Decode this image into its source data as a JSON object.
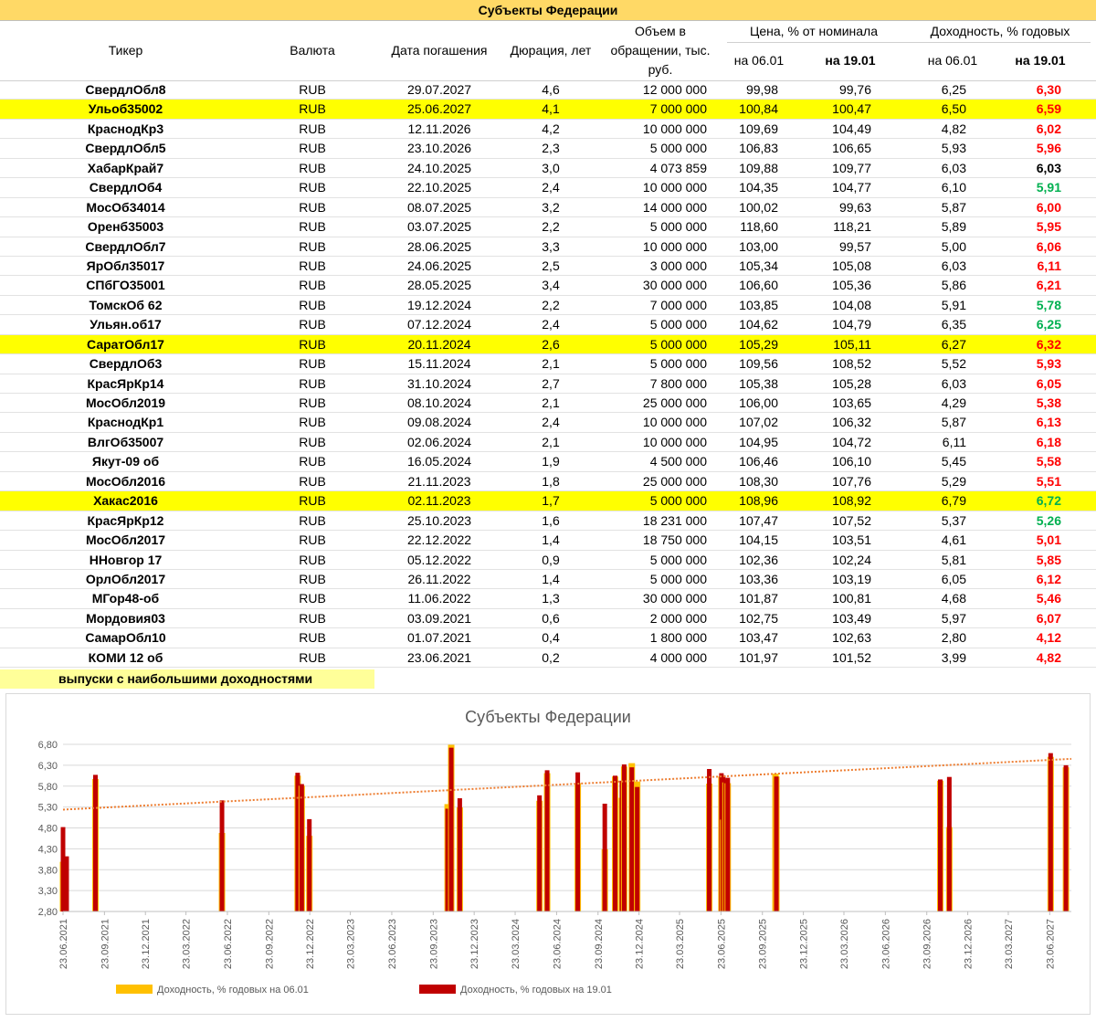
{
  "table": {
    "title": "Субъекты Федерации",
    "headers": {
      "ticker": "Тикер",
      "currency": "Валюта",
      "maturity": "Дата погашения",
      "duration": "Дюрация, лет",
      "volume_l1": "Объем в",
      "volume_l2": "обращении, тыс.",
      "volume_l3": "руб.",
      "price": "Цена, % от номинала",
      "yield": "Доходность, % годовых",
      "date1": "на 06.01",
      "date2": "на 19.01"
    },
    "rows": [
      {
        "ticker": "СвердлОбл8",
        "currency": "RUB",
        "maturity": "29.07.2027",
        "duration": "4,6",
        "volume": "12 000 000",
        "price_0601": "99,98",
        "price_1901": "99,76",
        "yield_0601": "6,25",
        "yield_1901": "6,30",
        "yield_color": "red",
        "highlight": false
      },
      {
        "ticker": "Ульоб35002",
        "currency": "RUB",
        "maturity": "25.06.2027",
        "duration": "4,1",
        "volume": "7 000 000",
        "price_0601": "100,84",
        "price_1901": "100,47",
        "yield_0601": "6,50",
        "yield_1901": "6,59",
        "yield_color": "red",
        "highlight": true
      },
      {
        "ticker": "КраснодКр3",
        "currency": "RUB",
        "maturity": "12.11.2026",
        "duration": "4,2",
        "volume": "10 000 000",
        "price_0601": "109,69",
        "price_1901": "104,49",
        "yield_0601": "4,82",
        "yield_1901": "6,02",
        "yield_color": "red",
        "highlight": false
      },
      {
        "ticker": "СвердлОбл5",
        "currency": "RUB",
        "maturity": "23.10.2026",
        "duration": "2,3",
        "volume": "5 000 000",
        "price_0601": "106,83",
        "price_1901": "106,65",
        "yield_0601": "5,93",
        "yield_1901": "5,96",
        "yield_color": "red",
        "highlight": false
      },
      {
        "ticker": "ХабарКрай7",
        "currency": "RUB",
        "maturity": "24.10.2025",
        "duration": "3,0",
        "volume": "4 073 859",
        "price_0601": "109,88",
        "price_1901": "109,77",
        "yield_0601": "6,03",
        "yield_1901": "6,03",
        "yield_color": "black",
        "highlight": false
      },
      {
        "ticker": "СвердлОб4",
        "currency": "RUB",
        "maturity": "22.10.2025",
        "duration": "2,4",
        "volume": "10 000 000",
        "price_0601": "104,35",
        "price_1901": "104,77",
        "yield_0601": "6,10",
        "yield_1901": "5,91",
        "yield_color": "green",
        "highlight": false
      },
      {
        "ticker": "МосОб34014",
        "currency": "RUB",
        "maturity": "08.07.2025",
        "duration": "3,2",
        "volume": "14 000 000",
        "price_0601": "100,02",
        "price_1901": "99,63",
        "yield_0601": "5,87",
        "yield_1901": "6,00",
        "yield_color": "red",
        "highlight": false
      },
      {
        "ticker": "Оренб35003",
        "currency": "RUB",
        "maturity": "03.07.2025",
        "duration": "2,2",
        "volume": "5 000 000",
        "price_0601": "118,60",
        "price_1901": "118,21",
        "yield_0601": "5,89",
        "yield_1901": "5,95",
        "yield_color": "red",
        "highlight": false
      },
      {
        "ticker": "СвердлОбл7",
        "currency": "RUB",
        "maturity": "28.06.2025",
        "duration": "3,3",
        "volume": "10 000 000",
        "price_0601": "103,00",
        "price_1901": "99,57",
        "yield_0601": "5,00",
        "yield_1901": "6,06",
        "yield_color": "red",
        "highlight": false
      },
      {
        "ticker": "ЯрОбл35017",
        "currency": "RUB",
        "maturity": "24.06.2025",
        "duration": "2,5",
        "volume": "3 000 000",
        "price_0601": "105,34",
        "price_1901": "105,08",
        "yield_0601": "6,03",
        "yield_1901": "6,11",
        "yield_color": "red",
        "highlight": false
      },
      {
        "ticker": "СПбГО35001",
        "currency": "RUB",
        "maturity": "28.05.2025",
        "duration": "3,4",
        "volume": "30 000 000",
        "price_0601": "106,60",
        "price_1901": "105,36",
        "yield_0601": "5,86",
        "yield_1901": "6,21",
        "yield_color": "red",
        "highlight": false
      },
      {
        "ticker": "ТомскОб 62",
        "currency": "RUB",
        "maturity": "19.12.2024",
        "duration": "2,2",
        "volume": "7 000 000",
        "price_0601": "103,85",
        "price_1901": "104,08",
        "yield_0601": "5,91",
        "yield_1901": "5,78",
        "yield_color": "green",
        "highlight": false
      },
      {
        "ticker": "Ульян.об17",
        "currency": "RUB",
        "maturity": "07.12.2024",
        "duration": "2,4",
        "volume": "5 000 000",
        "price_0601": "104,62",
        "price_1901": "104,79",
        "yield_0601": "6,35",
        "yield_1901": "6,25",
        "yield_color": "green",
        "highlight": false
      },
      {
        "ticker": "СаратОбл17",
        "currency": "RUB",
        "maturity": "20.11.2024",
        "duration": "2,6",
        "volume": "5 000 000",
        "price_0601": "105,29",
        "price_1901": "105,11",
        "yield_0601": "6,27",
        "yield_1901": "6,32",
        "yield_color": "red",
        "highlight": true
      },
      {
        "ticker": "СвердлОб3",
        "currency": "RUB",
        "maturity": "15.11.2024",
        "duration": "2,1",
        "volume": "5 000 000",
        "price_0601": "109,56",
        "price_1901": "108,52",
        "yield_0601": "5,52",
        "yield_1901": "5,93",
        "yield_color": "red",
        "highlight": false
      },
      {
        "ticker": "КрасЯрКр14",
        "currency": "RUB",
        "maturity": "31.10.2024",
        "duration": "2,7",
        "volume": "7 800 000",
        "price_0601": "105,38",
        "price_1901": "105,28",
        "yield_0601": "6,03",
        "yield_1901": "6,05",
        "yield_color": "red",
        "highlight": false
      },
      {
        "ticker": "МосОбл2019",
        "currency": "RUB",
        "maturity": "08.10.2024",
        "duration": "2,1",
        "volume": "25 000 000",
        "price_0601": "106,00",
        "price_1901": "103,65",
        "yield_0601": "4,29",
        "yield_1901": "5,38",
        "yield_color": "red",
        "highlight": false
      },
      {
        "ticker": "КраснодКр1",
        "currency": "RUB",
        "maturity": "09.08.2024",
        "duration": "2,4",
        "volume": "10 000 000",
        "price_0601": "107,02",
        "price_1901": "106,32",
        "yield_0601": "5,87",
        "yield_1901": "6,13",
        "yield_color": "red",
        "highlight": false
      },
      {
        "ticker": "ВлгОб35007",
        "currency": "RUB",
        "maturity": "02.06.2024",
        "duration": "2,1",
        "volume": "10 000 000",
        "price_0601": "104,95",
        "price_1901": "104,72",
        "yield_0601": "6,11",
        "yield_1901": "6,18",
        "yield_color": "red",
        "highlight": false
      },
      {
        "ticker": "Якут-09 об",
        "currency": "RUB",
        "maturity": "16.05.2024",
        "duration": "1,9",
        "volume": "4 500 000",
        "price_0601": "106,46",
        "price_1901": "106,10",
        "yield_0601": "5,45",
        "yield_1901": "5,58",
        "yield_color": "red",
        "highlight": false
      },
      {
        "ticker": "МосОбл2016",
        "currency": "RUB",
        "maturity": "21.11.2023",
        "duration": "1,8",
        "volume": "25 000 000",
        "price_0601": "108,30",
        "price_1901": "107,76",
        "yield_0601": "5,29",
        "yield_1901": "5,51",
        "yield_color": "red",
        "highlight": false
      },
      {
        "ticker": "Хакас2016",
        "currency": "RUB",
        "maturity": "02.11.2023",
        "duration": "1,7",
        "volume": "5 000 000",
        "price_0601": "108,96",
        "price_1901": "108,92",
        "yield_0601": "6,79",
        "yield_1901": "6,72",
        "yield_color": "green",
        "highlight": true
      },
      {
        "ticker": "КрасЯрКр12",
        "currency": "RUB",
        "maturity": "25.10.2023",
        "duration": "1,6",
        "volume": "18 231 000",
        "price_0601": "107,47",
        "price_1901": "107,52",
        "yield_0601": "5,37",
        "yield_1901": "5,26",
        "yield_color": "green",
        "highlight": false
      },
      {
        "ticker": "МосОбл2017",
        "currency": "RUB",
        "maturity": "22.12.2022",
        "duration": "1,4",
        "volume": "18 750 000",
        "price_0601": "104,15",
        "price_1901": "103,51",
        "yield_0601": "4,61",
        "yield_1901": "5,01",
        "yield_color": "red",
        "highlight": false
      },
      {
        "ticker": "ННовгор 17",
        "currency": "RUB",
        "maturity": "05.12.2022",
        "duration": "0,9",
        "volume": "5 000 000",
        "price_0601": "102,36",
        "price_1901": "102,24",
        "yield_0601": "5,81",
        "yield_1901": "5,85",
        "yield_color": "red",
        "highlight": false
      },
      {
        "ticker": "ОрлОбл2017",
        "currency": "RUB",
        "maturity": "26.11.2022",
        "duration": "1,4",
        "volume": "5 000 000",
        "price_0601": "103,36",
        "price_1901": "103,19",
        "yield_0601": "6,05",
        "yield_1901": "6,12",
        "yield_color": "red",
        "highlight": false
      },
      {
        "ticker": "МГор48-об",
        "currency": "RUB",
        "maturity": "11.06.2022",
        "duration": "1,3",
        "volume": "30 000 000",
        "price_0601": "101,87",
        "price_1901": "100,81",
        "yield_0601": "4,68",
        "yield_1901": "5,46",
        "yield_color": "red",
        "highlight": false
      },
      {
        "ticker": "Мордовия03",
        "currency": "RUB",
        "maturity": "03.09.2021",
        "duration": "0,6",
        "volume": "2 000 000",
        "price_0601": "102,75",
        "price_1901": "103,49",
        "yield_0601": "5,97",
        "yield_1901": "6,07",
        "yield_color": "red",
        "highlight": false
      },
      {
        "ticker": "СамарОбл10",
        "currency": "RUB",
        "maturity": "01.07.2021",
        "duration": "0,4",
        "volume": "1 800 000",
        "price_0601": "103,47",
        "price_1901": "102,63",
        "yield_0601": "2,80",
        "yield_1901": "4,12",
        "yield_color": "red",
        "highlight": false
      },
      {
        "ticker": "КОМИ 12 об",
        "currency": "RUB",
        "maturity": "23.06.2021",
        "duration": "0,2",
        "volume": "4 000 000",
        "price_0601": "101,97",
        "price_1901": "101,52",
        "yield_0601": "3,99",
        "yield_1901": "4,82",
        "yield_color": "red",
        "highlight": false
      }
    ],
    "note": "выпуски с наибольшими доходностями"
  },
  "colors": {
    "title_bg": "#ffd966",
    "highlight": "#ffff00",
    "note_bg": "#ffff99",
    "up": "#ff0000",
    "down": "#00b050",
    "series_0601": "#ffc000",
    "series_1901": "#c00000",
    "trend": "#ed7d31"
  },
  "chart_data": {
    "type": "bar",
    "title": "Субъекты Федерации",
    "xlabel": "",
    "ylabel": "",
    "ylim": [
      2.8,
      6.8
    ],
    "yticks": [
      "2,80",
      "3,30",
      "3,80",
      "4,30",
      "4,80",
      "5,30",
      "5,80",
      "6,30",
      "6,80"
    ],
    "xlim": [
      "2021-06-23",
      "2027-08-10"
    ],
    "xticks": [
      "23.06.2021",
      "23.09.2021",
      "23.12.2021",
      "23.03.2022",
      "23.06.2022",
      "23.09.2022",
      "23.12.2022",
      "23.03.2023",
      "23.06.2023",
      "23.09.2023",
      "23.12.2023",
      "23.03.2024",
      "23.06.2024",
      "23.09.2024",
      "23.12.2024",
      "23.03.2025",
      "23.06.2025",
      "23.09.2025",
      "23.12.2025",
      "23.03.2026",
      "23.06.2026",
      "23.09.2026",
      "23.12.2026",
      "23.03.2027",
      "23.06.2027"
    ],
    "grid": "horizontal",
    "legend_position": "bottom",
    "trendline": "linear",
    "x": [
      "2021-06-23",
      "2021-07-01",
      "2021-09-03",
      "2022-06-11",
      "2022-11-26",
      "2022-12-05",
      "2022-12-22",
      "2023-10-25",
      "2023-11-02",
      "2023-11-21",
      "2024-05-16",
      "2024-06-02",
      "2024-08-09",
      "2024-10-08",
      "2024-10-31",
      "2024-11-15",
      "2024-11-20",
      "2024-12-07",
      "2024-12-19",
      "2025-05-28",
      "2025-06-24",
      "2025-06-28",
      "2025-07-03",
      "2025-07-08",
      "2025-10-22",
      "2025-10-24",
      "2026-10-23",
      "2026-11-12",
      "2027-06-25",
      "2027-07-29"
    ],
    "series": [
      {
        "name": "Доходность, % годовых на 06.01",
        "values": [
          3.99,
          2.8,
          5.97,
          4.68,
          6.05,
          5.81,
          4.61,
          5.37,
          6.79,
          5.29,
          5.45,
          6.11,
          5.87,
          4.29,
          6.03,
          5.52,
          6.27,
          6.35,
          5.91,
          5.86,
          6.03,
          5.0,
          5.89,
          5.87,
          6.1,
          6.03,
          5.93,
          4.82,
          6.5,
          6.25
        ]
      },
      {
        "name": "Доходность, % годовых на 19.01",
        "values": [
          4.82,
          4.12,
          6.07,
          5.46,
          6.12,
          5.85,
          5.01,
          5.26,
          6.72,
          5.51,
          5.58,
          6.18,
          6.13,
          5.38,
          6.05,
          5.93,
          6.32,
          6.25,
          5.78,
          6.21,
          6.11,
          6.06,
          5.95,
          6.0,
          5.91,
          6.03,
          5.96,
          6.02,
          6.59,
          6.3
        ]
      }
    ]
  }
}
